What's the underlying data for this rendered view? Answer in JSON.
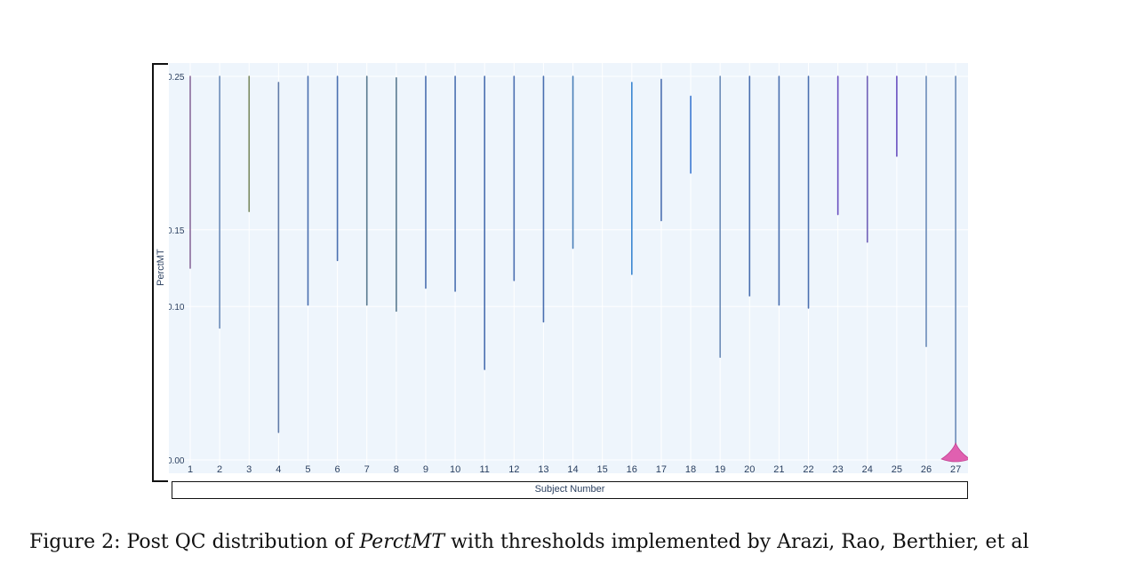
{
  "chart_data": {
    "type": "violin",
    "title": "",
    "xlabel": "Subject Number",
    "ylabel": "PerctMT",
    "ylim": [
      0,
      0.25
    ],
    "y_ticks": [
      "0.00",
      "0.10",
      "0.15",
      "0.25"
    ],
    "y_tick_values": [
      0.0,
      0.1,
      0.15,
      0.25
    ],
    "categories": [
      "1",
      "2",
      "3",
      "4",
      "5",
      "6",
      "7",
      "8",
      "9",
      "10",
      "11",
      "12",
      "13",
      "14",
      "15",
      "16",
      "17",
      "18",
      "19",
      "20",
      "21",
      "22",
      "23",
      "24",
      "25",
      "26",
      "27"
    ],
    "series": [
      {
        "category": "1",
        "min": 0.125,
        "max": 0.25,
        "color": "#8a6a9a"
      },
      {
        "category": "2",
        "min": 0.086,
        "max": 0.25,
        "color": "#6b8bb8"
      },
      {
        "category": "3",
        "min": 0.162,
        "max": 0.25,
        "color": "#7a8a60"
      },
      {
        "category": "4",
        "min": 0.018,
        "max": 0.246,
        "color": "#607aa8"
      },
      {
        "category": "5",
        "min": 0.101,
        "max": 0.25,
        "color": "#4a6fb0"
      },
      {
        "category": "6",
        "min": 0.13,
        "max": 0.25,
        "color": "#4a6fb0"
      },
      {
        "category": "7",
        "min": 0.101,
        "max": 0.25,
        "color": "#5a7a90"
      },
      {
        "category": "8",
        "min": 0.097,
        "max": 0.249,
        "color": "#5a7a90"
      },
      {
        "category": "9",
        "min": 0.112,
        "max": 0.25,
        "color": "#4a6fb0"
      },
      {
        "category": "10",
        "min": 0.11,
        "max": 0.25,
        "color": "#4a6fb0"
      },
      {
        "category": "11",
        "min": 0.059,
        "max": 0.25,
        "color": "#4a6fb0"
      },
      {
        "category": "12",
        "min": 0.117,
        "max": 0.25,
        "color": "#4a6fb0"
      },
      {
        "category": "13",
        "min": 0.09,
        "max": 0.25,
        "color": "#4a6fb0"
      },
      {
        "category": "14",
        "min": 0.138,
        "max": 0.25,
        "color": "#4a7fb8"
      },
      {
        "category": "16",
        "min": 0.121,
        "max": 0.246,
        "color": "#3b86d1"
      },
      {
        "category": "17",
        "min": 0.156,
        "max": 0.248,
        "color": "#4a6fb0"
      },
      {
        "category": "18",
        "min": 0.187,
        "max": 0.237,
        "color": "#3b78d1"
      },
      {
        "category": "19",
        "min": 0.067,
        "max": 0.25,
        "color": "#6b8bb8"
      },
      {
        "category": "20",
        "min": 0.107,
        "max": 0.25,
        "color": "#4a6fb0"
      },
      {
        "category": "21",
        "min": 0.101,
        "max": 0.25,
        "color": "#4a6fb0"
      },
      {
        "category": "22",
        "min": 0.099,
        "max": 0.25,
        "color": "#4a6fb0"
      },
      {
        "category": "23",
        "min": 0.16,
        "max": 0.25,
        "color": "#6a50c0"
      },
      {
        "category": "24",
        "min": 0.142,
        "max": 0.25,
        "color": "#7060b8"
      },
      {
        "category": "25",
        "min": 0.198,
        "max": 0.25,
        "color": "#6a50c0"
      },
      {
        "category": "26",
        "min": 0.074,
        "max": 0.25,
        "color": "#6b8bb8"
      },
      {
        "category": "27",
        "min": 0.0,
        "max": 0.25,
        "color": "#6b8bb8",
        "bulge_color": "#e060b0"
      }
    ],
    "grid": true,
    "background": "#eef5fc"
  },
  "caption": {
    "prefix": "Figure 2: Post QC distribution of ",
    "term": "PerctMT",
    "suffix": " with thresholds implemented by Arazi, Rao, Berthier, et al"
  },
  "colors": {
    "plot_bg": "#eef5fc",
    "grid": "#ffffff",
    "tick_text": "#2a3f5f"
  }
}
